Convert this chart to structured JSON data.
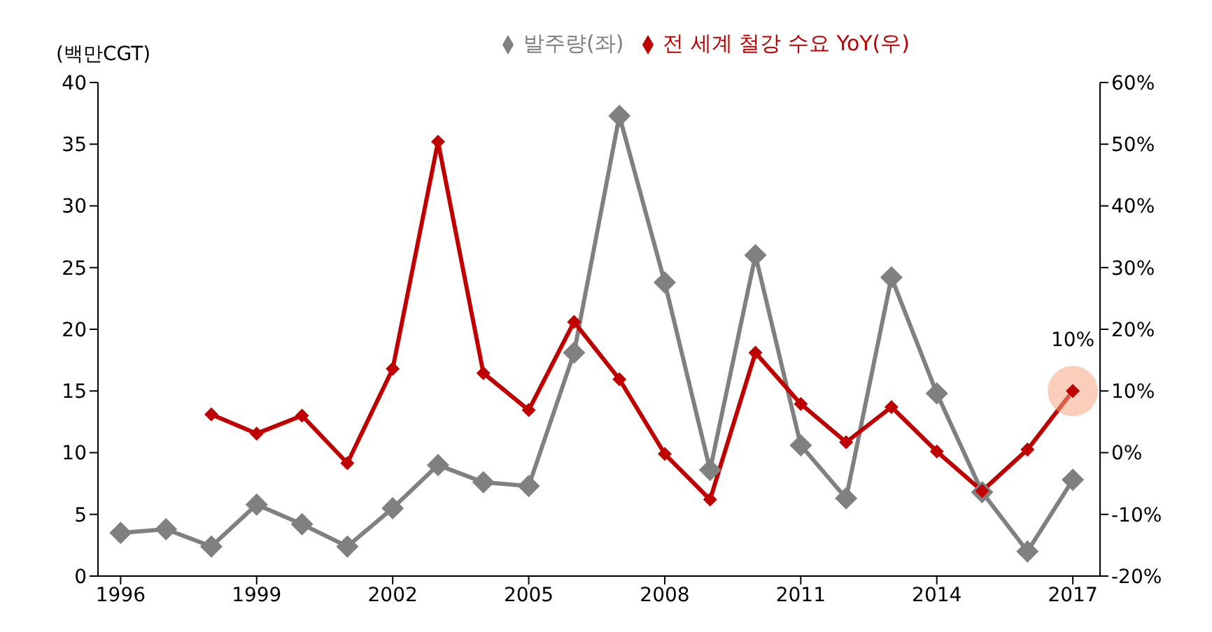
{
  "chart_data": {
    "type": "line",
    "ylabel": "(백만CGT)",
    "legend": "top",
    "marker": "diamond",
    "line_style": "solid",
    "grid": false,
    "xlim": [
      1995.5,
      2017.6
    ],
    "xticks": [
      1996,
      1999,
      2002,
      2005,
      2008,
      2011,
      2014,
      2017
    ],
    "ylim": [
      0,
      40
    ],
    "yticks": [
      0,
      5,
      10,
      15,
      20,
      25,
      30,
      35,
      40
    ],
    "y2lim": [
      -20,
      60
    ],
    "y2ticks": [
      {
        "value": -20,
        "label": "-20%"
      },
      {
        "value": -10,
        "label": "-10%"
      },
      {
        "value": 0,
        "label": "0%"
      },
      {
        "value": 10,
        "label": "10%"
      },
      {
        "value": 20,
        "label": "20%"
      },
      {
        "value": 30,
        "label": "30%"
      },
      {
        "value": 40,
        "label": "40%"
      },
      {
        "value": 50,
        "label": "50%"
      },
      {
        "value": 60,
        "label": "60%"
      }
    ],
    "annotations": [
      "10%"
    ],
    "series": [
      {
        "name": "발주량(좌)",
        "color": "#808080",
        "x": [
          1996,
          1997,
          1998,
          1999,
          2000,
          2001,
          2002,
          2003,
          2004,
          2005,
          2006,
          2007,
          2008,
          2009,
          2010,
          2011,
          2012,
          2013,
          2014,
          2015,
          2016,
          2017
        ],
        "values": [
          3.5,
          3.8,
          2.4,
          5.8,
          4.2,
          2.4,
          5.5,
          9.0,
          7.6,
          7.3,
          18.1,
          37.3,
          23.8,
          8.6,
          26.0,
          10.6,
          6.3,
          24.2,
          14.8,
          6.8,
          2.0,
          7.8
        ]
      },
      {
        "name": "전 세계 철강 수요 YoY(우)",
        "color": "#c00000",
        "axis": "y2",
        "x": [
          1998,
          1999,
          2000,
          2001,
          2002,
          2003,
          2004,
          2005,
          2006,
          2007,
          2008,
          2009,
          2010,
          2011,
          2012,
          2013,
          2014,
          2015,
          2016,
          2017
        ],
        "values": [
          6.2,
          3.1,
          6.0,
          -1.7,
          13.6,
          50.4,
          12.9,
          6.9,
          21.2,
          11.9,
          -0.2,
          -7.6,
          16.2,
          7.9,
          1.7,
          7.4,
          0.2,
          -6.2,
          0.5,
          10
        ]
      }
    ]
  }
}
